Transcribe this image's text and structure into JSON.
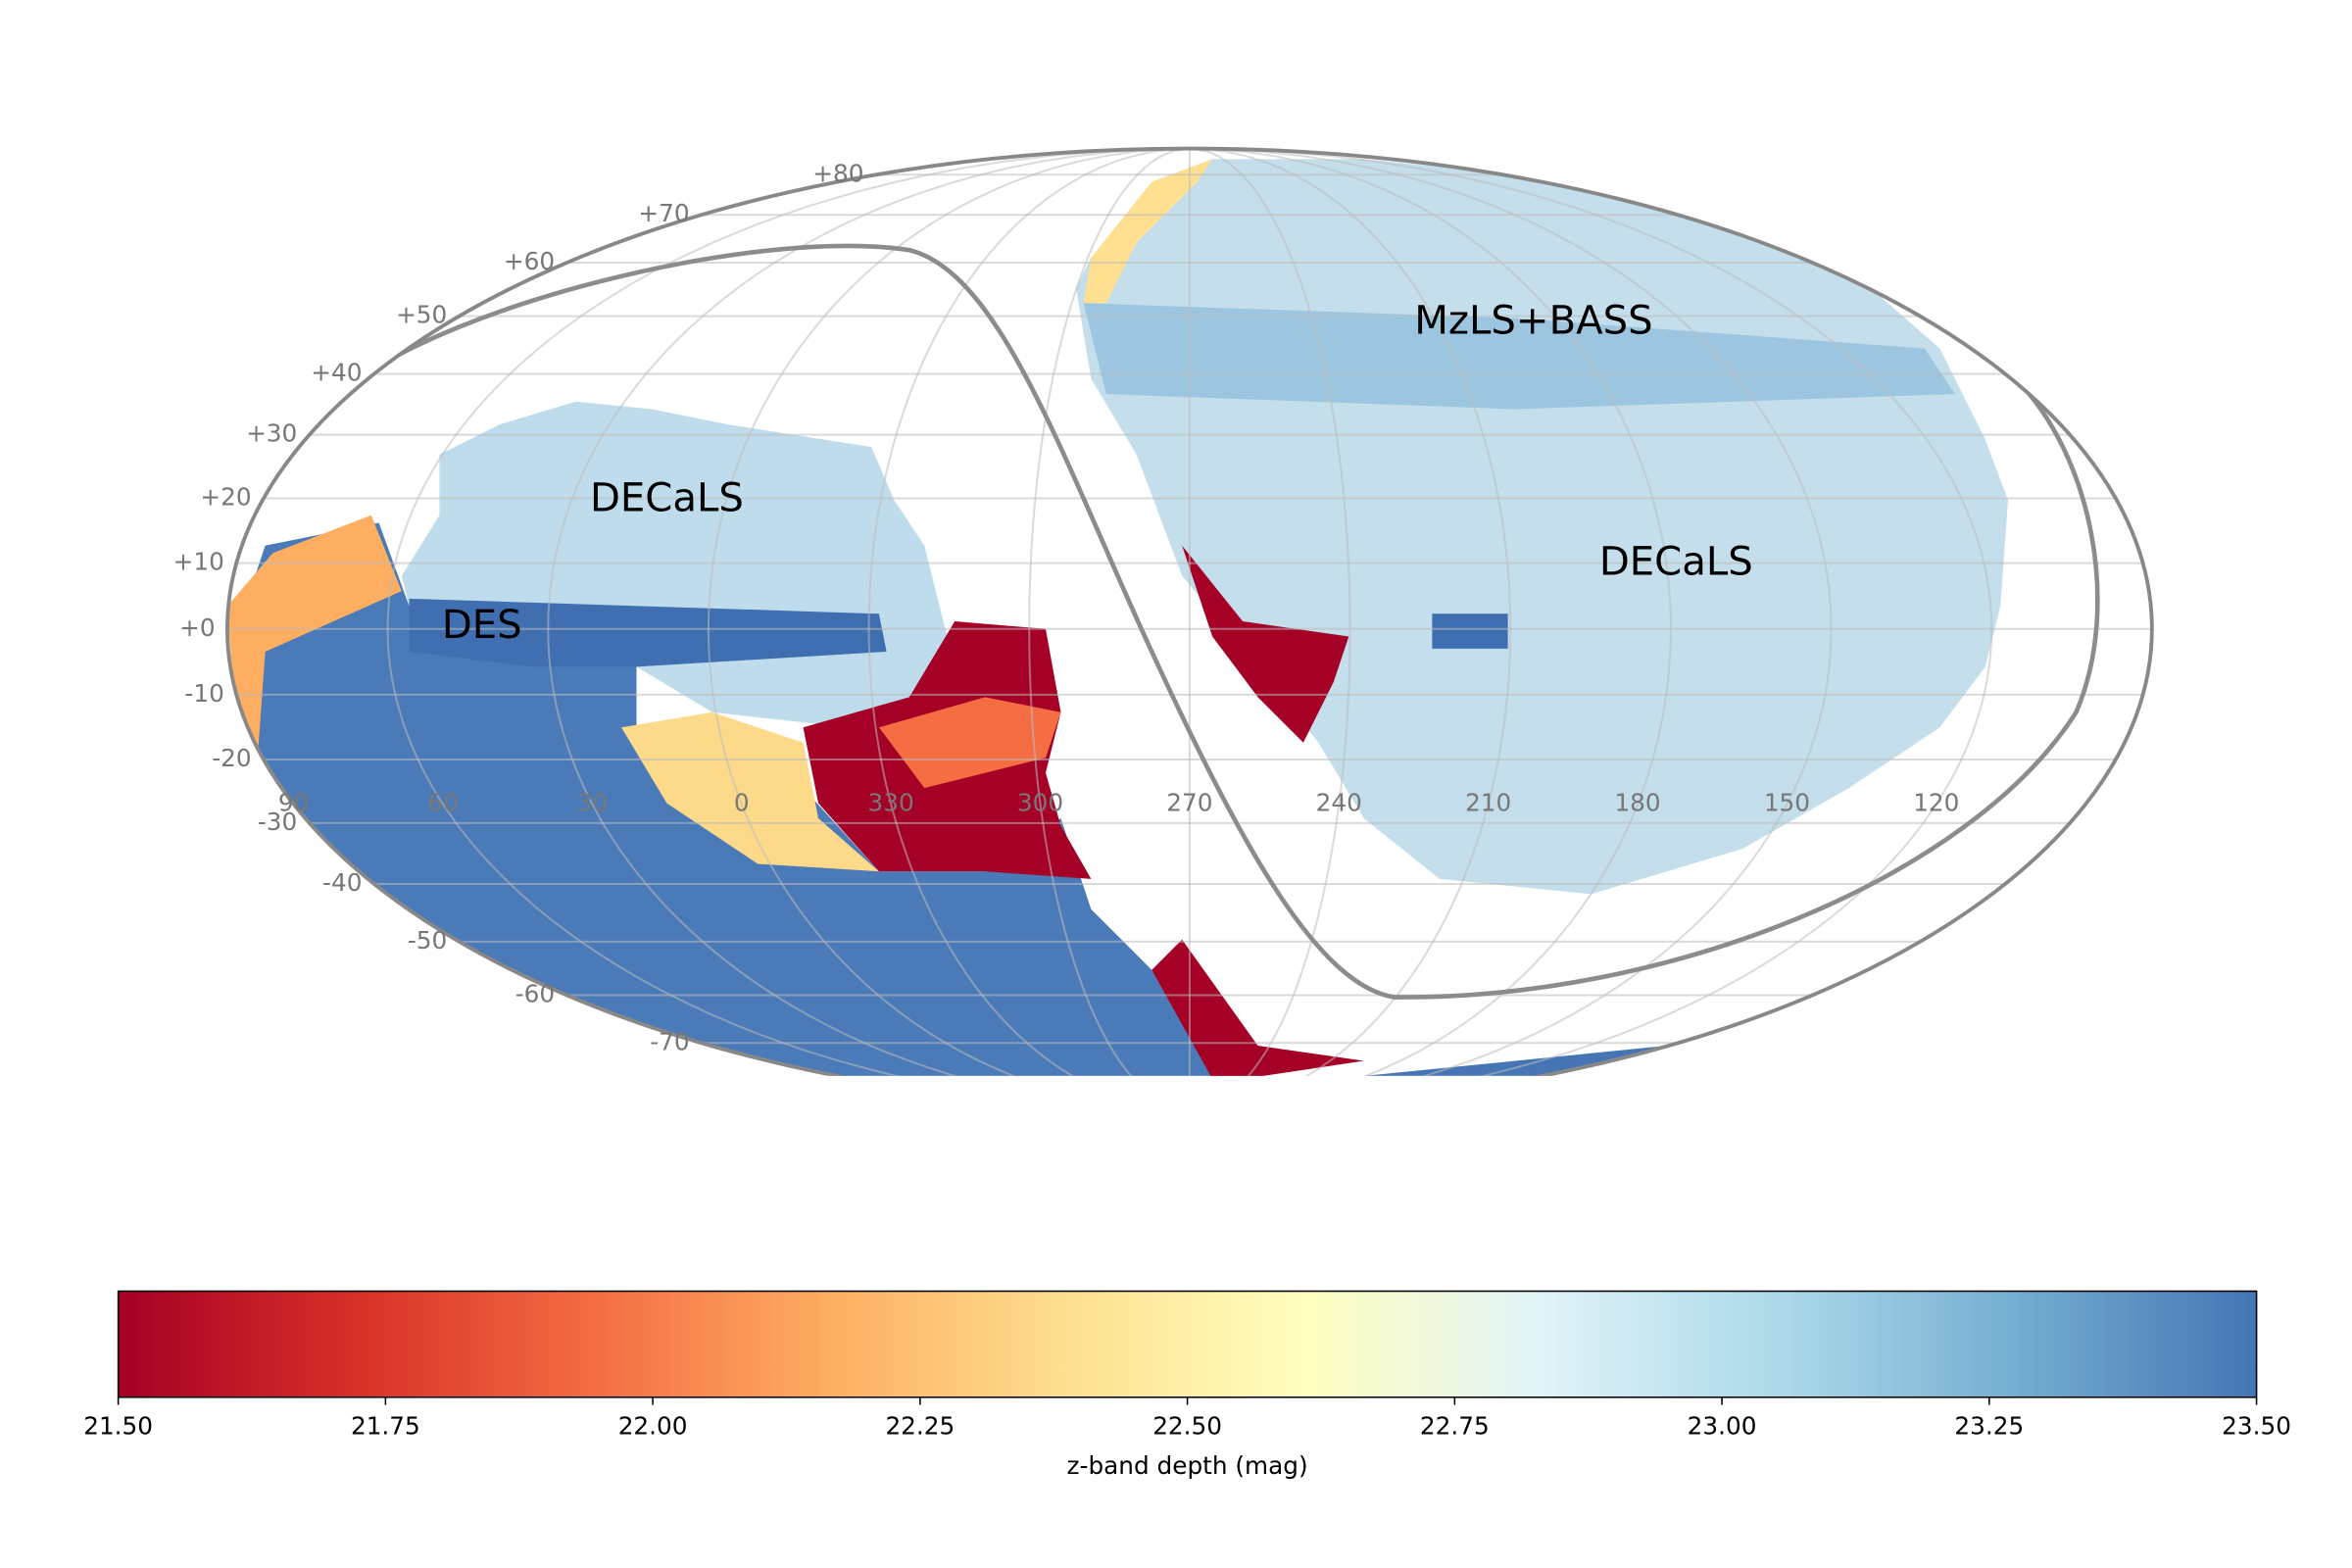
{
  "map": {
    "region_labels": [
      "MzLS+BASS",
      "DECaLS",
      "DES",
      "DECaLS"
    ],
    "dec_ticks": [
      {
        "value": 80,
        "label": "+80"
      },
      {
        "value": 70,
        "label": "+70"
      },
      {
        "value": 60,
        "label": "+60"
      },
      {
        "value": 50,
        "label": "+50"
      },
      {
        "value": 40,
        "label": "+40"
      },
      {
        "value": 30,
        "label": "+30"
      },
      {
        "value": 20,
        "label": "+20"
      },
      {
        "value": 10,
        "label": "+10"
      },
      {
        "value": 0,
        "label": "+0"
      },
      -10,
      -20,
      -30,
      -40,
      -50,
      -60,
      -70
    ],
    "ra_ticks": [
      60,
      30,
      0,
      330,
      300,
      270,
      240,
      210,
      180,
      150,
      120,
      90
    ]
  },
  "colorbar": {
    "label": "z-band depth (mag)",
    "lim": [
      21.5,
      23.5
    ],
    "ticks": [
      {
        "value": 21.5,
        "label": "21.50"
      },
      {
        "value": 21.75,
        "label": "21.75"
      },
      {
        "value": 22.0,
        "label": "22.00"
      },
      {
        "value": 22.25,
        "label": "22.25"
      },
      {
        "value": 22.5,
        "label": "22.50"
      },
      {
        "value": 22.75,
        "label": "22.75"
      },
      {
        "value": 23.0,
        "label": "23.00"
      },
      {
        "value": 23.25,
        "label": "23.25"
      },
      {
        "value": 23.5,
        "label": "23.50"
      }
    ],
    "colormap": [
      "#a50026",
      "#d73027",
      "#f46d43",
      "#fdae61",
      "#fee090",
      "#ffffbf",
      "#e0f3f8",
      "#abd9e9",
      "#74add1",
      "#4575b4"
    ]
  }
}
